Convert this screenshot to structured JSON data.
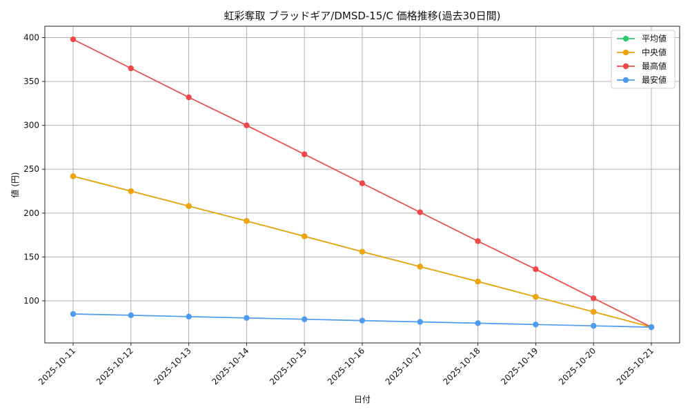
{
  "chart_data": {
    "type": "line",
    "title": "虹彩奪取 ブラッドギア/DMSD-15/C 価格推移(過去30日間)",
    "xlabel": "日付",
    "ylabel": "値 (円)",
    "ylim": [
      52,
      413
    ],
    "yticks": [
      100,
      150,
      200,
      250,
      300,
      350,
      400
    ],
    "categories": [
      "2025-10-11",
      "2025-10-12",
      "2025-10-13",
      "2025-10-14",
      "2025-10-15",
      "2025-10-16",
      "2025-10-17",
      "2025-10-18",
      "2025-10-19",
      "2025-10-20",
      "2025-10-21"
    ],
    "grid": true,
    "legend_position": "top-right",
    "series": [
      {
        "name": "平均値",
        "color": "#2ecc71",
        "values": [
          242,
          225,
          208,
          191,
          173.5,
          156,
          139,
          122,
          104.5,
          87.5,
          70
        ]
      },
      {
        "name": "中央値",
        "color": "#f0a30a",
        "values": [
          242,
          225,
          208,
          191,
          173.5,
          156,
          139,
          122,
          104.5,
          87.5,
          70
        ]
      },
      {
        "name": "最高値",
        "color": "#f04848",
        "values": [
          398,
          365,
          332,
          300,
          267,
          234,
          201,
          168,
          136,
          103,
          70
        ]
      },
      {
        "name": "最安値",
        "color": "#4c9bf0",
        "values": [
          85,
          83.5,
          82,
          80.5,
          79,
          77.5,
          76,
          74.5,
          73,
          71.5,
          70
        ]
      }
    ]
  }
}
